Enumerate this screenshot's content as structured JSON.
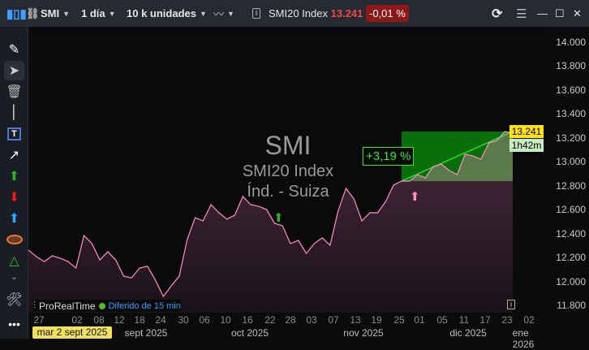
{
  "topbar": {
    "instrument": "SMI",
    "timeframe": "1 día",
    "units": "10 k unidades",
    "info_name": "SMI20 Index",
    "last_price": "13.241",
    "change": "-0,01 %"
  },
  "watermark": {
    "symbol": "SMI",
    "name": "SMI20 Index",
    "category": "Índ. - Suiza"
  },
  "annotation": {
    "percent": "+3,19 %"
  },
  "footer": {
    "brand": "ProRealTime",
    "delay": "Diferido de 15 min",
    "tooltip_date": "mar 2 sept 2025"
  },
  "price_label": "13.241",
  "countdown": "1h42m",
  "colors": {
    "line": "#ff8fc8",
    "area": "#3d2333",
    "box": "#0a6e0a",
    "trend": "#32e632",
    "price_badge": "#ffe11a",
    "countdown_badge": "#c6ecc0",
    "negative": "#e84040"
  },
  "icons": [
    "pencil-icon",
    "cursor-icon",
    "trash-icon",
    "line-icon",
    "text-icon",
    "arrow-icon",
    "green-up-arrow-icon",
    "red-down-arrow-icon",
    "blue-up-arrow-icon",
    "ellipse-icon",
    "triangle-icon"
  ],
  "chart_data": {
    "type": "area",
    "ylim": [
      11800,
      14000
    ],
    "yticks": [
      "14.000",
      "13.800",
      "13.600",
      "13.400",
      "13.200",
      "13.000",
      "12.800",
      "12.600",
      "12.400",
      "12.200",
      "12.000",
      "11.800"
    ],
    "xticks": [
      "27",
      "02",
      "08",
      "12",
      "18",
      "24",
      "30",
      "06",
      "10",
      "16",
      "22",
      "28",
      "03",
      "07",
      "13",
      "19",
      "25",
      "01",
      "05",
      "11",
      "17",
      "23",
      "02"
    ],
    "months": [
      "sept 2025",
      "oct 2025",
      "nov 2025",
      "dic 2025",
      "ene 2026"
    ],
    "values": [
      12262,
      12207,
      12166,
      12214,
      12194,
      12166,
      12112,
      12384,
      12316,
      12180,
      12248,
      12180,
      12044,
      12030,
      12112,
      12126,
      12010,
      11874,
      11963,
      12044,
      12350,
      12533,
      12506,
      12642,
      12574,
      12520,
      12554,
      12710,
      12642,
      12628,
      12601,
      12486,
      12465,
      12316,
      12343,
      12234,
      12316,
      12364,
      12302,
      12588,
      12778,
      12689,
      12506,
      12574,
      12574,
      12669,
      12805,
      12839,
      12839,
      12893,
      12866,
      12961,
      12981,
      12927,
      12893,
      13063,
      13049,
      13022,
      13158,
      13178,
      13253,
      13241
    ]
  }
}
